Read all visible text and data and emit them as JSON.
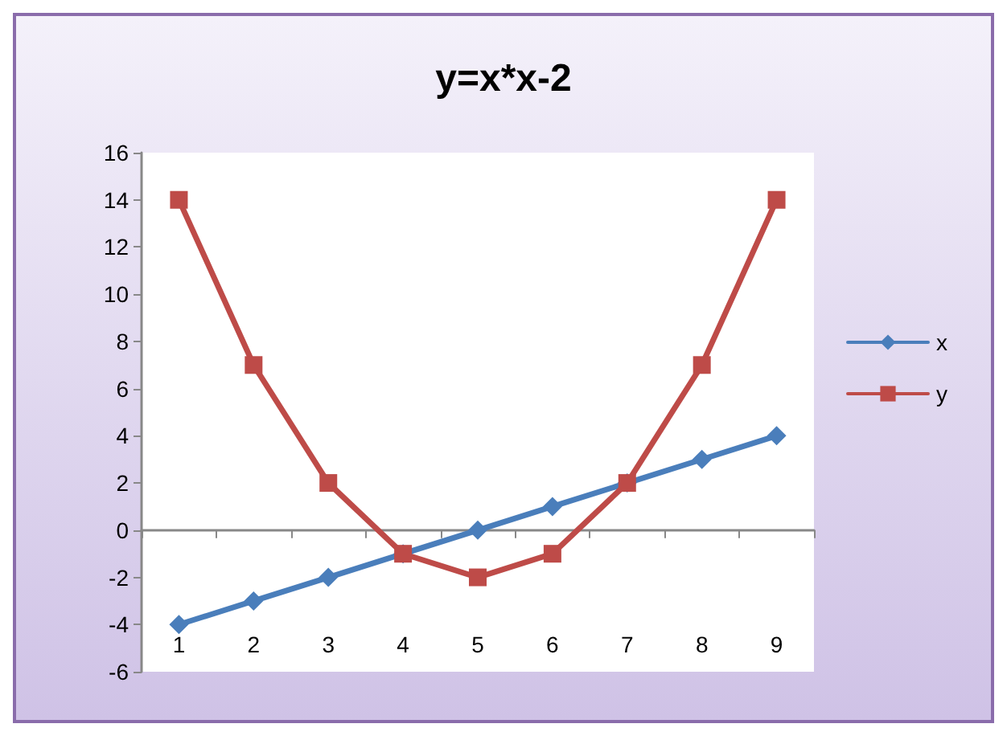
{
  "chart_data": {
    "type": "line",
    "title": "y=x*x-2",
    "categories": [
      "1",
      "2",
      "3",
      "4",
      "5",
      "6",
      "7",
      "8",
      "9"
    ],
    "series": [
      {
        "name": "x",
        "color": "#4a7ebb",
        "marker": "diamond",
        "values": [
          -4,
          -3,
          -2,
          -1,
          0,
          1,
          2,
          3,
          4
        ]
      },
      {
        "name": "y",
        "color": "#be4b48",
        "marker": "square",
        "values": [
          14,
          7,
          2,
          -1,
          -2,
          -1,
          2,
          7,
          14
        ]
      }
    ],
    "ylim": [
      -6,
      16
    ],
    "yticks": [
      -6,
      -4,
      -2,
      0,
      2,
      4,
      6,
      8,
      10,
      12,
      14,
      16
    ],
    "legend": "right"
  }
}
